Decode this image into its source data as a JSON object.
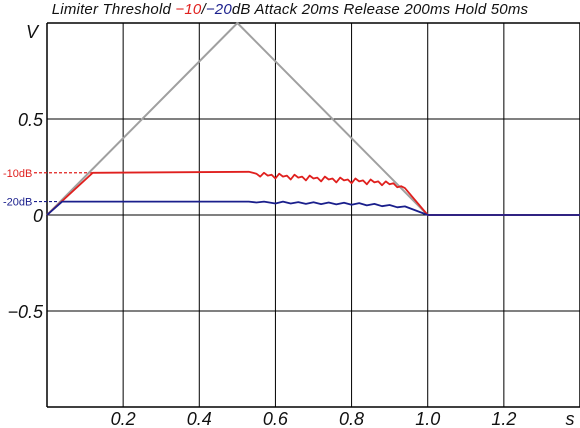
{
  "title": {
    "prefix": "Limiter Threshold ",
    "t1": "−10",
    "sep": "/",
    "t2": "−20",
    "suffix": "dB Attack 20ms Release 200ms Hold 50ms"
  },
  "chart_data": {
    "type": "line",
    "title": "Limiter Threshold −10/−20dB Attack 20ms Release 200ms Hold 50ms",
    "xlabel": "s",
    "ylabel": "V",
    "xlim": [
      0,
      1.4
    ],
    "ylim": [
      -1,
      1
    ],
    "grid": true,
    "x_ticks": [
      "0.2",
      "0.4",
      "0.6",
      "0.8",
      "1.0",
      "1.2"
    ],
    "y_ticks": [
      "0.5",
      "0",
      "−0.5"
    ],
    "threshold_markers": [
      {
        "label": "-10dB",
        "value": 0.22,
        "color": "#e0201e"
      },
      {
        "label": "-20dB",
        "value": 0.07,
        "color": "#1a1f8c"
      }
    ],
    "colors": {
      "input": "#a0a0a0",
      "limit_10": "#e0201e",
      "limit_20": "#1a1f8c",
      "grid": "#000000"
    },
    "series": [
      {
        "key": "input",
        "x": [
          0,
          0.5,
          1.0,
          1.4
        ],
        "y": [
          0,
          1.0,
          0,
          0
        ]
      },
      {
        "key": "limit_10",
        "x": [
          0,
          0.12,
          0.53,
          0.55,
          0.56,
          0.57,
          0.58,
          0.59,
          0.6,
          0.61,
          0.62,
          0.63,
          0.64,
          0.65,
          0.66,
          0.67,
          0.68,
          0.69,
          0.7,
          0.71,
          0.72,
          0.73,
          0.74,
          0.75,
          0.76,
          0.77,
          0.78,
          0.79,
          0.8,
          0.81,
          0.82,
          0.83,
          0.84,
          0.85,
          0.86,
          0.87,
          0.88,
          0.89,
          0.9,
          0.91,
          0.92,
          0.93,
          0.94,
          1.0,
          1.4
        ],
        "y": [
          0,
          0.22,
          0.225,
          0.215,
          0.2,
          0.22,
          0.205,
          0.21,
          0.19,
          0.215,
          0.2,
          0.205,
          0.185,
          0.21,
          0.195,
          0.2,
          0.18,
          0.205,
          0.19,
          0.195,
          0.175,
          0.2,
          0.185,
          0.19,
          0.17,
          0.195,
          0.18,
          0.185,
          0.165,
          0.19,
          0.175,
          0.18,
          0.16,
          0.185,
          0.17,
          0.175,
          0.155,
          0.175,
          0.16,
          0.165,
          0.145,
          0.15,
          0.14,
          0,
          0
        ]
      },
      {
        "key": "limit_20",
        "x": [
          0,
          0.04,
          0.53,
          0.55,
          0.57,
          0.6,
          0.62,
          0.64,
          0.66,
          0.68,
          0.7,
          0.72,
          0.74,
          0.76,
          0.78,
          0.8,
          0.82,
          0.84,
          0.86,
          0.88,
          0.9,
          0.92,
          0.94,
          1.0,
          1.4
        ],
        "y": [
          0,
          0.07,
          0.07,
          0.065,
          0.07,
          0.06,
          0.07,
          0.06,
          0.067,
          0.058,
          0.066,
          0.057,
          0.065,
          0.055,
          0.064,
          0.053,
          0.062,
          0.05,
          0.058,
          0.046,
          0.052,
          0.04,
          0.045,
          0,
          0
        ]
      }
    ]
  }
}
